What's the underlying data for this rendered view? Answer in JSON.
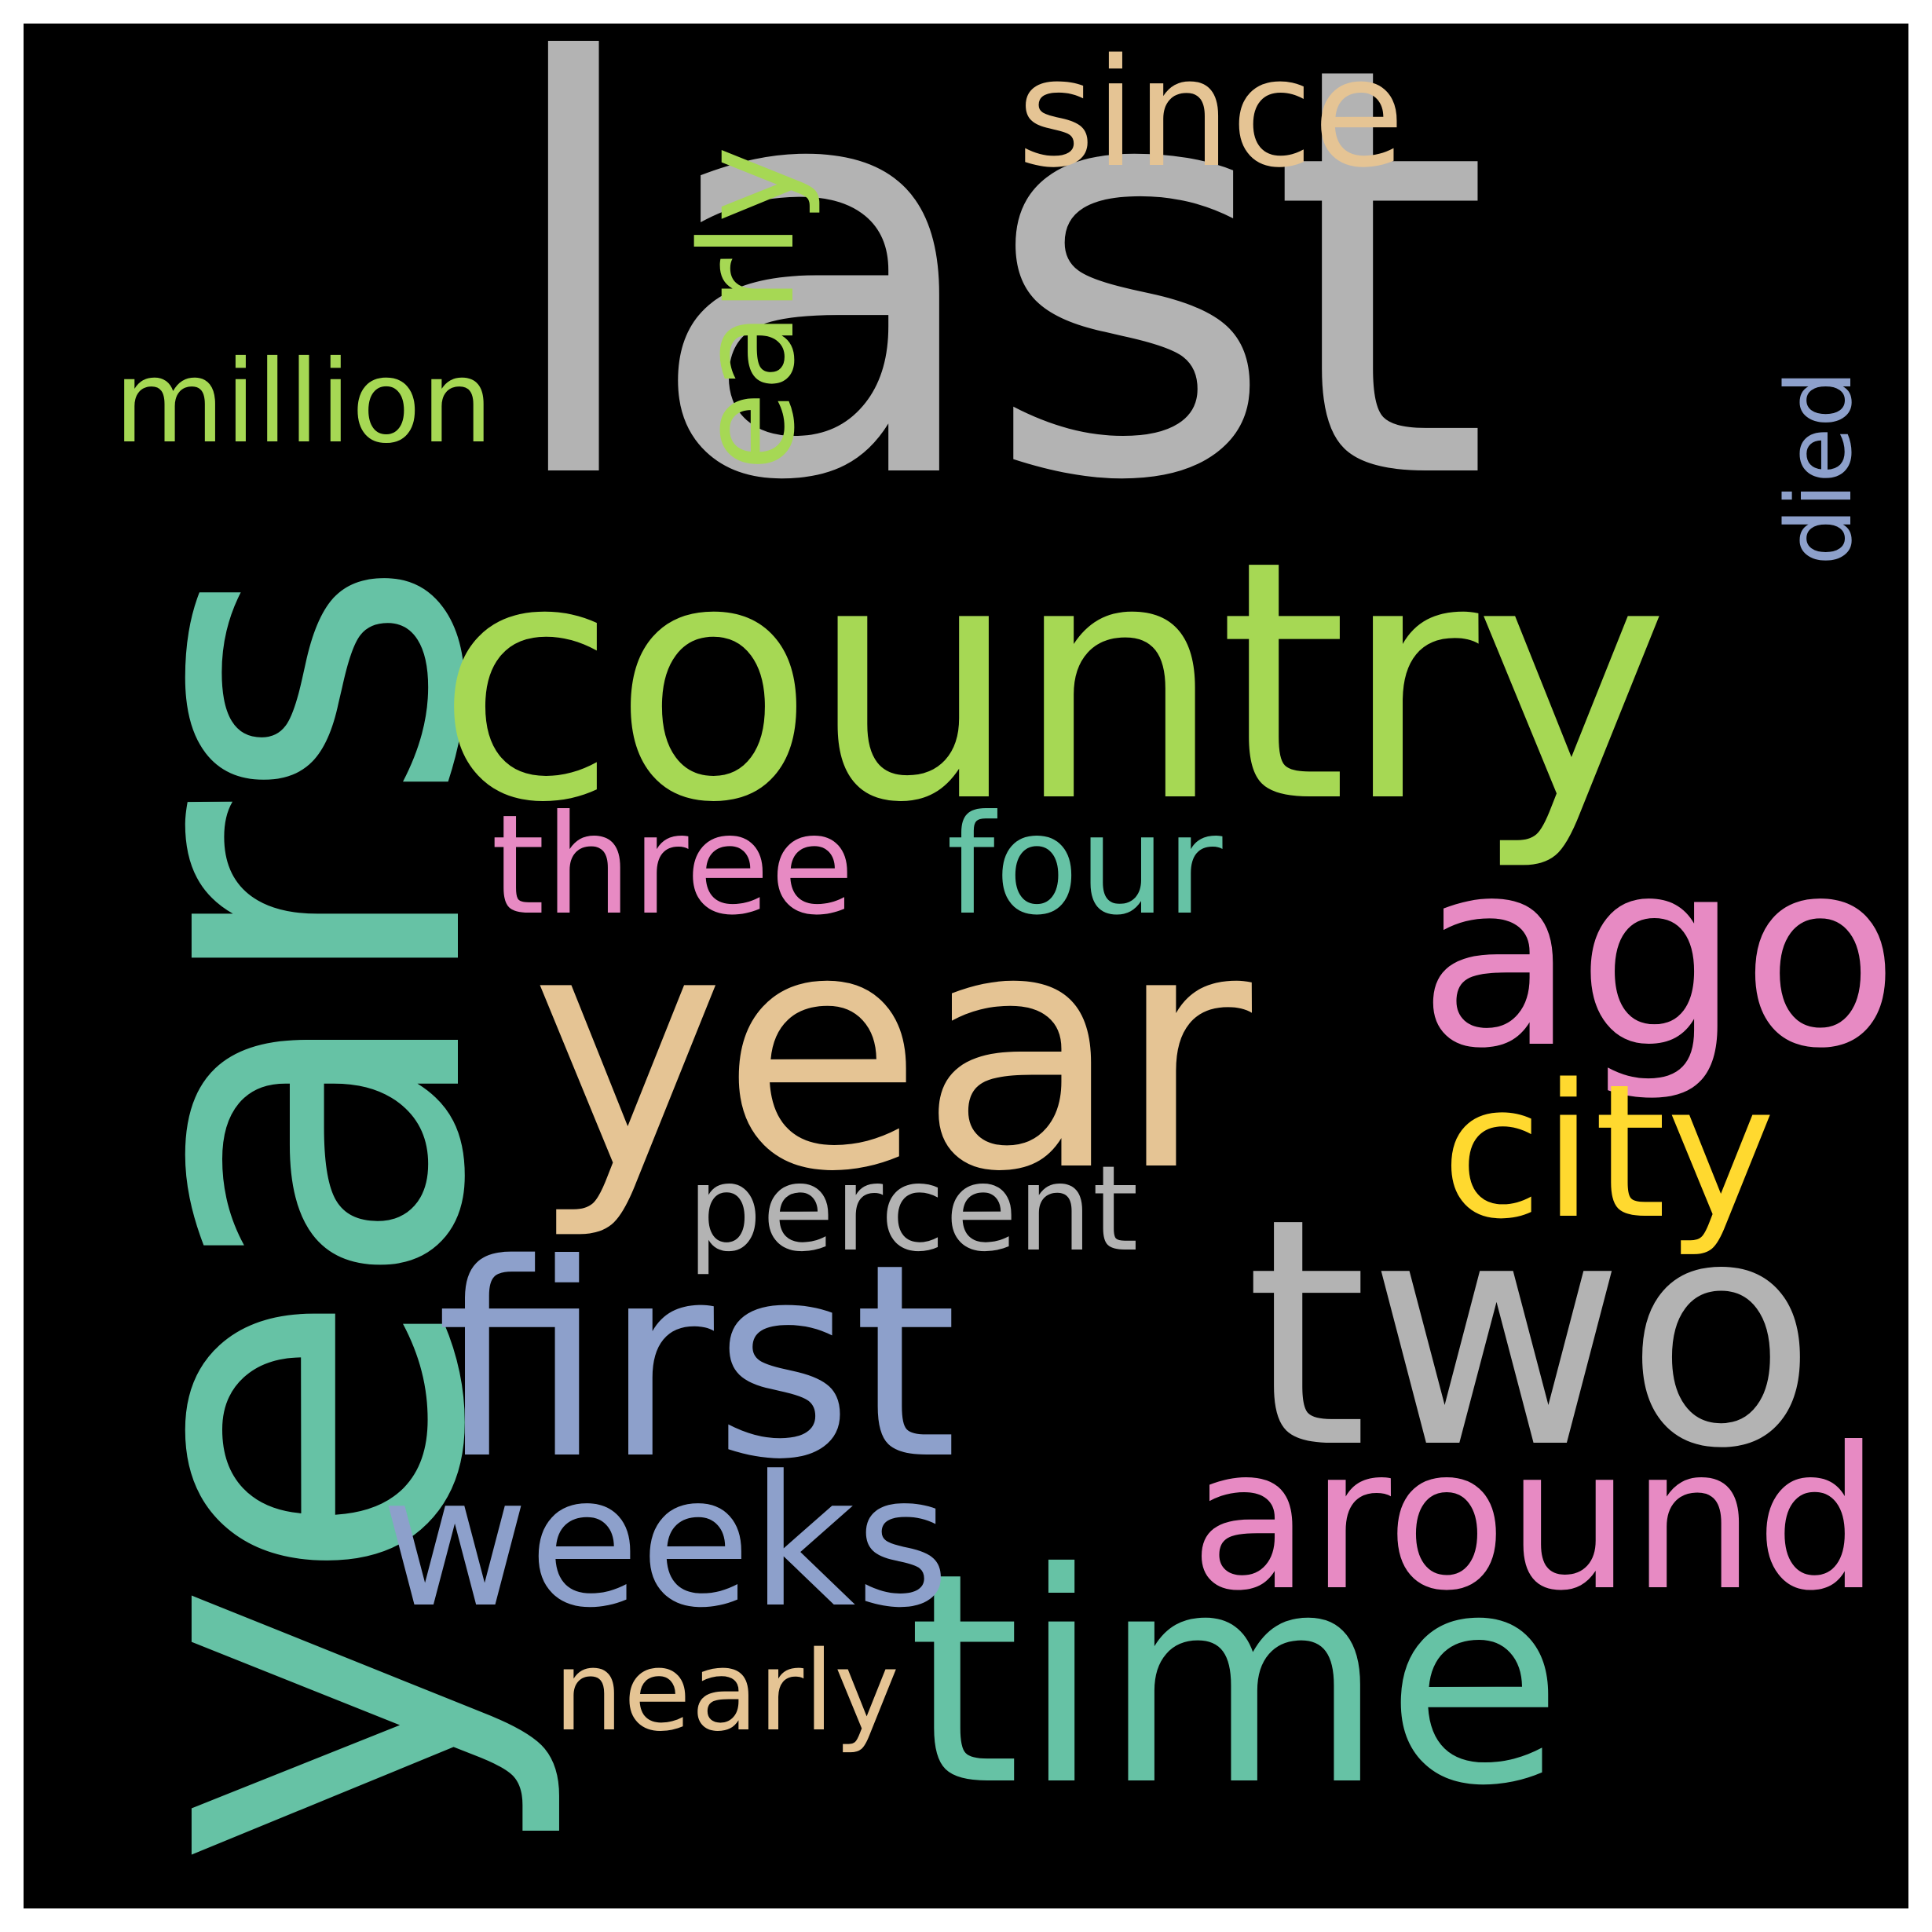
{
  "words": [
    {
      "text": "last",
      "color": "#b3b3b3",
      "orientation": "horizontal"
    },
    {
      "text": "years",
      "color": "#66c2a5",
      "orientation": "vertical"
    },
    {
      "text": "country",
      "color": "#a6d854",
      "orientation": "horizontal"
    },
    {
      "text": "year",
      "color": "#e5c494",
      "orientation": "horizontal"
    },
    {
      "text": "two",
      "color": "#b3b3b3",
      "orientation": "horizontal"
    },
    {
      "text": "first",
      "color": "#8da0cb",
      "orientation": "horizontal"
    },
    {
      "text": "time",
      "color": "#66c2a5",
      "orientation": "horizontal"
    },
    {
      "text": "ago",
      "color": "#e78ac3",
      "orientation": "horizontal"
    },
    {
      "text": "around",
      "color": "#e78ac3",
      "orientation": "horizontal"
    },
    {
      "text": "city",
      "color": "#ffd92f",
      "orientation": "horizontal"
    },
    {
      "text": "weeks",
      "color": "#8da0cb",
      "orientation": "horizontal"
    },
    {
      "text": "since",
      "color": "#e5c494",
      "orientation": "horizontal"
    },
    {
      "text": "three",
      "color": "#e78ac3",
      "orientation": "horizontal"
    },
    {
      "text": "four",
      "color": "#66c2a5",
      "orientation": "horizontal"
    },
    {
      "text": "early",
      "color": "#a6d854",
      "orientation": "vertical"
    },
    {
      "text": "million",
      "color": "#a6d854",
      "orientation": "horizontal"
    },
    {
      "text": "percent",
      "color": "#b3b3b3",
      "orientation": "horizontal"
    },
    {
      "text": "nearly",
      "color": "#e5c494",
      "orientation": "horizontal"
    },
    {
      "text": "died",
      "color": "#8da0cb",
      "orientation": "vertical"
    }
  ],
  "background_color": "#000000"
}
